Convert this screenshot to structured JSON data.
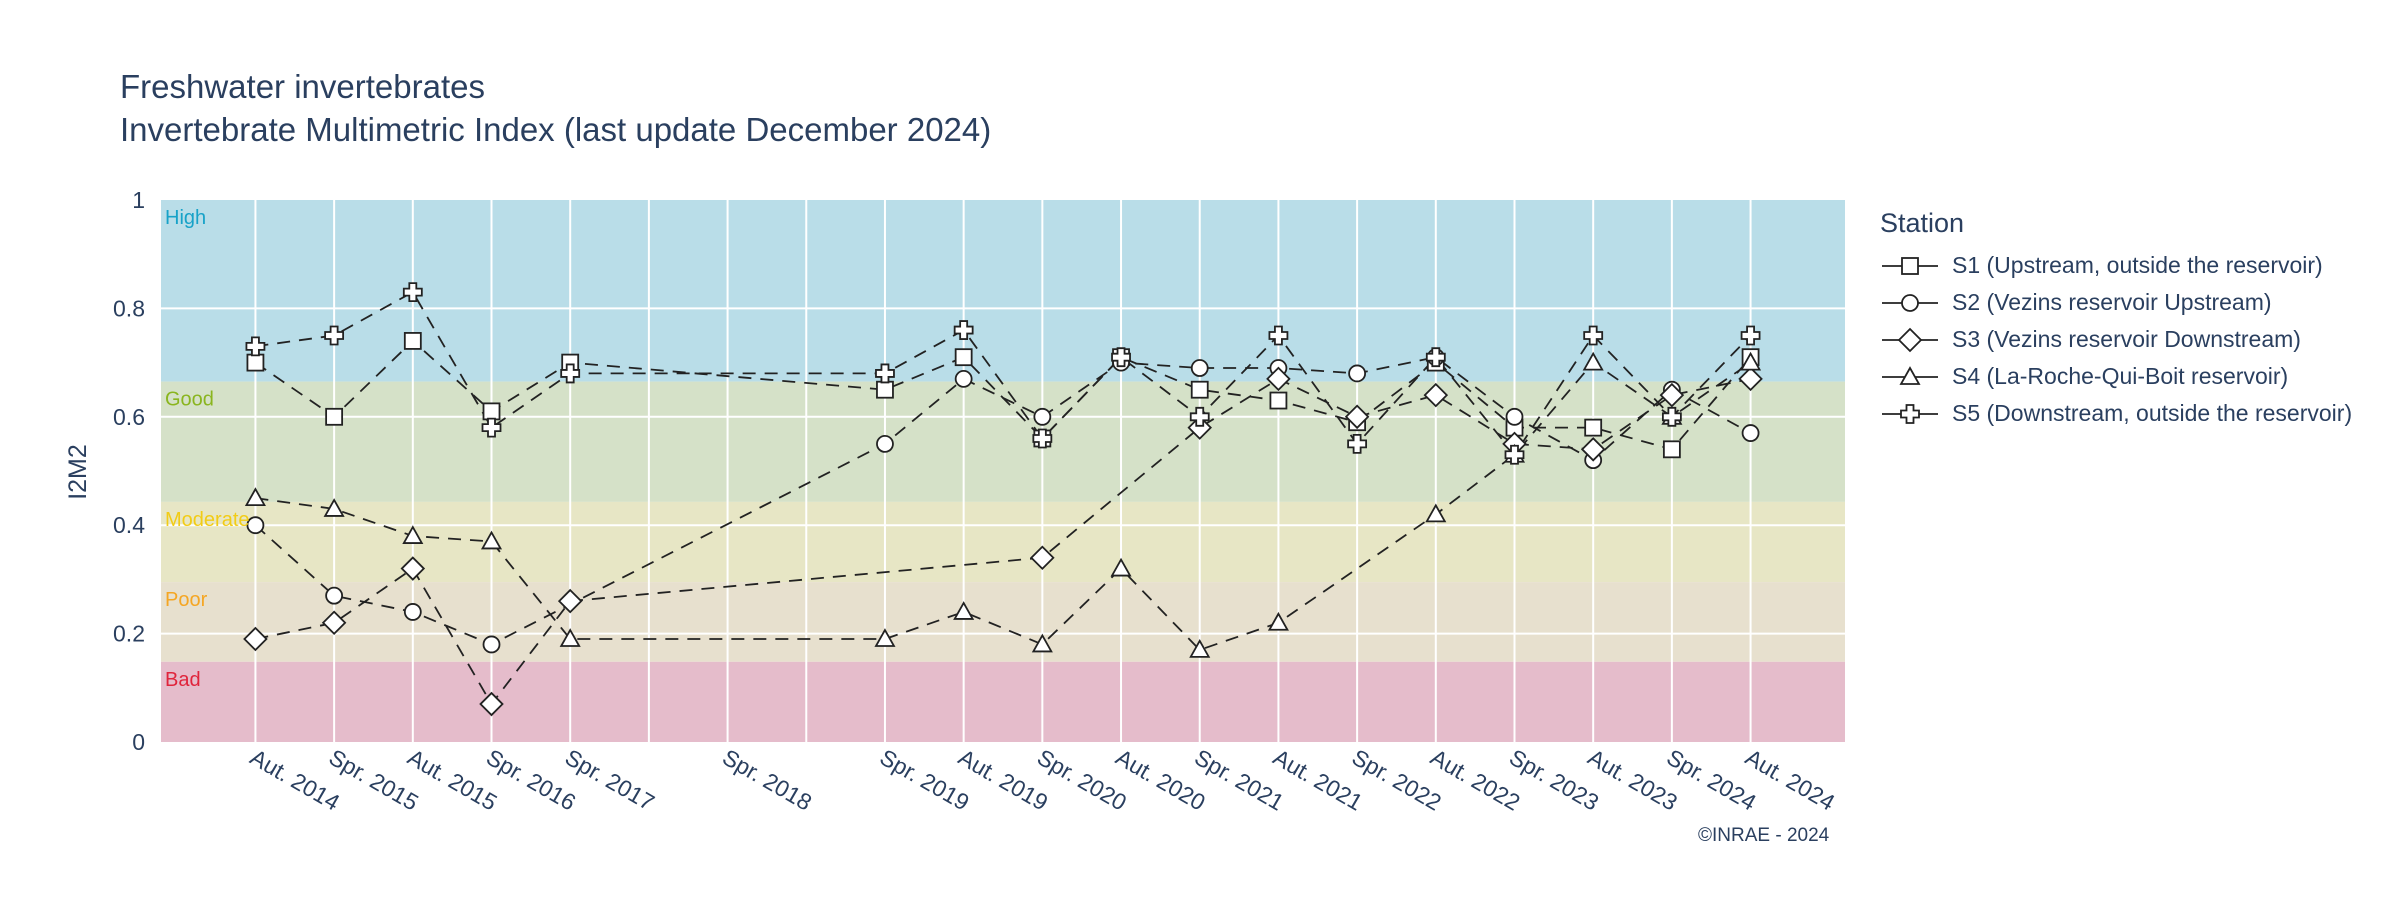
{
  "title_line1": "Freshwater invertebrates",
  "title_line2": "Invertebrate Multimetric Index (last update December 2024)",
  "copyright": "©INRAE - 2024",
  "legend": {
    "title": "Station"
  },
  "chart_data": {
    "type": "line",
    "ylabel": "I2M2",
    "xlabel": "",
    "ylim": [
      0,
      1
    ],
    "yticks": [
      0,
      0.2,
      0.4,
      0.6,
      0.8,
      1
    ],
    "ytick_labels": [
      "0",
      "0.2",
      "0.4",
      "0.6",
      "0.8",
      "1"
    ],
    "categories": [
      "Aut. 2014",
      "Spr. 2015",
      "Aut. 2015",
      "Spr. 2016",
      "Spr. 2017",
      "Spr. 2018",
      "Spr. 2019",
      "Aut. 2019",
      "Spr. 2020",
      "Aut. 2020",
      "Spr. 2021",
      "Aut. 2021",
      "Spr. 2022",
      "Aut. 2022",
      "Spr. 2023",
      "Aut. 2023",
      "Spr. 2024",
      "Aut. 2024"
    ],
    "category_positions": [
      0,
      1,
      2,
      3,
      4,
      6,
      8,
      9,
      10,
      11,
      12,
      13,
      14,
      15,
      16,
      17,
      18,
      19
    ],
    "xlim": [
      -1.2,
      20.2
    ],
    "grid": true,
    "legend_position": "right",
    "bands": [
      {
        "label": "High",
        "from": 0.665,
        "to": 1.0,
        "color": "#b9dde8",
        "label_color": "#17a2c8"
      },
      {
        "label": "Good",
        "from": 0.443,
        "to": 0.665,
        "color": "#d5e1c8",
        "label_color": "#8ab51f"
      },
      {
        "label": "Moderate",
        "from": 0.295,
        "to": 0.443,
        "color": "#e7e6c5",
        "label_color": "#f2cc16"
      },
      {
        "label": "Poor",
        "from": 0.148,
        "to": 0.295,
        "color": "#e7e0ce",
        "label_color": "#f5a623"
      },
      {
        "label": "Bad",
        "from": 0.0,
        "to": 0.148,
        "color": "#e5bccb",
        "label_color": "#e0243c"
      }
    ],
    "series": [
      {
        "name": "S1 (Upstream, outside the reservoir)",
        "marker": "square",
        "points": [
          [
            0,
            0.7
          ],
          [
            1,
            0.6
          ],
          [
            2,
            0.74
          ],
          [
            3,
            0.61
          ],
          [
            4,
            0.7
          ],
          [
            8,
            0.65
          ],
          [
            9,
            0.71
          ],
          [
            10,
            0.56
          ],
          [
            11,
            0.71
          ],
          [
            12,
            0.65
          ],
          [
            13,
            0.63
          ],
          [
            14,
            0.59
          ],
          [
            15,
            0.7
          ],
          [
            16,
            0.58
          ],
          [
            17,
            0.58
          ],
          [
            18,
            0.54
          ],
          [
            19,
            0.71
          ]
        ]
      },
      {
        "name": "S2 (Vezins reservoir Upstream)",
        "marker": "circle",
        "points": [
          [
            0,
            0.4
          ],
          [
            1,
            0.27
          ],
          [
            2,
            0.24
          ],
          [
            3,
            0.18
          ],
          [
            8,
            0.55
          ],
          [
            9,
            0.67
          ],
          [
            10,
            0.6
          ],
          [
            11,
            0.7
          ],
          [
            12,
            0.69
          ],
          [
            13,
            0.69
          ],
          [
            14,
            0.68
          ],
          [
            15,
            0.71
          ],
          [
            16,
            0.6
          ],
          [
            17,
            0.52
          ],
          [
            18,
            0.65
          ],
          [
            19,
            0.57
          ]
        ]
      },
      {
        "name": "S3 (Vezins reservoir Downstream)",
        "marker": "diamond",
        "points": [
          [
            0,
            0.19
          ],
          [
            1,
            0.22
          ],
          [
            2,
            0.32
          ],
          [
            3,
            0.07
          ],
          [
            4,
            0.26
          ],
          [
            10,
            0.34
          ],
          [
            12,
            0.58
          ],
          [
            13,
            0.67
          ],
          [
            14,
            0.6
          ],
          [
            15,
            0.64
          ],
          [
            16,
            0.55
          ],
          [
            17,
            0.54
          ],
          [
            18,
            0.64
          ],
          [
            19,
            0.67
          ]
        ]
      },
      {
        "name": "S4 (La-Roche-Qui-Boit reservoir)",
        "marker": "triangle",
        "points": [
          [
            0,
            0.45
          ],
          [
            1,
            0.43
          ],
          [
            2,
            0.38
          ],
          [
            3,
            0.37
          ],
          [
            4,
            0.19
          ],
          [
            8,
            0.19
          ],
          [
            9,
            0.24
          ],
          [
            10,
            0.18
          ],
          [
            11,
            0.32
          ],
          [
            12,
            0.17
          ],
          [
            13,
            0.22
          ],
          [
            15,
            0.42
          ],
          [
            16,
            0.53
          ],
          [
            17,
            0.7
          ],
          [
            18,
            0.6
          ],
          [
            19,
            0.7
          ]
        ]
      },
      {
        "name": "S5 (Downstream, outside the reservoir)",
        "marker": "cross",
        "points": [
          [
            0,
            0.73
          ],
          [
            1,
            0.75
          ],
          [
            2,
            0.83
          ],
          [
            3,
            0.58
          ],
          [
            4,
            0.68
          ],
          [
            8,
            0.68
          ],
          [
            9,
            0.76
          ],
          [
            10,
            0.56
          ],
          [
            11,
            0.71
          ],
          [
            12,
            0.6
          ],
          [
            13,
            0.75
          ],
          [
            14,
            0.55
          ],
          [
            15,
            0.71
          ],
          [
            16,
            0.53
          ],
          [
            17,
            0.75
          ],
          [
            18,
            0.6
          ],
          [
            19,
            0.75
          ]
        ]
      }
    ]
  }
}
